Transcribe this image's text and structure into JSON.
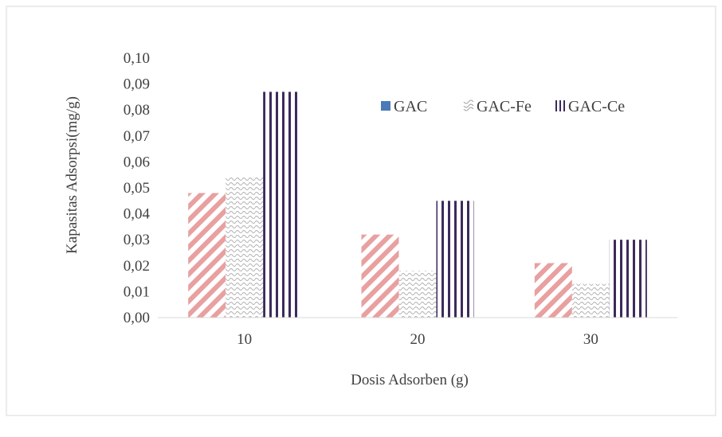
{
  "chart_data": {
    "type": "bar",
    "title": "",
    "xlabel": "Dosis Adsorben (g)",
    "ylabel": "Kapasitas Adsorpsi(mg/g)",
    "categories": [
      "10",
      "20",
      "30"
    ],
    "ylim": [
      0,
      0.1
    ],
    "yticks": [
      "0,00",
      "0,01",
      "0,02",
      "0,03",
      "0,04",
      "0,05",
      "0,06",
      "0,07",
      "0,08",
      "0,09",
      "0,10"
    ],
    "grid": false,
    "legend_position": "top-right",
    "series": [
      {
        "name": "GAC",
        "values": [
          0.048,
          0.032,
          0.021
        ],
        "color": "#e8a0a0",
        "pattern": "diagonal-stripes",
        "legend_color": "#4a7ab8"
      },
      {
        "name": "GAC-Fe",
        "values": [
          0.054,
          0.018,
          0.013
        ],
        "color": "#c8c8c8",
        "pattern": "dotted-wave"
      },
      {
        "name": "GAC-Ce",
        "values": [
          0.087,
          0.045,
          0.03
        ],
        "color": "#3d2a5c",
        "pattern": "vertical-lines"
      }
    ]
  }
}
